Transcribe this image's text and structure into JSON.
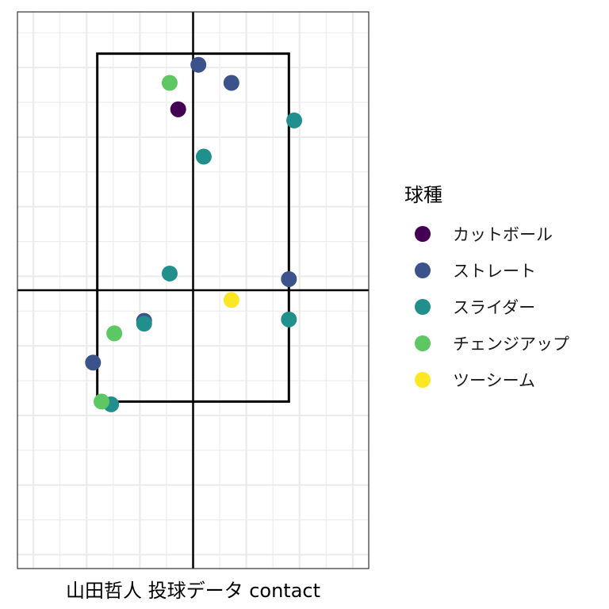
{
  "chart_data": {
    "type": "scatter",
    "title": "",
    "xlabel": "山田哲人 投球データ contact",
    "ylabel": "",
    "xlim": [
      -1.65,
      1.65
    ],
    "ylim": [
      0.4,
      4.4
    ],
    "grid": true,
    "strike_zone": {
      "x": [
        -0.9,
        0.9
      ],
      "y": [
        1.6,
        4.1
      ]
    },
    "center_lines": {
      "x": 0,
      "y": 2.4
    },
    "legend": {
      "title": "球種",
      "position": "right",
      "entries": [
        {
          "name": "カットボール",
          "color": "#440154"
        },
        {
          "name": "ストレート",
          "color": "#3b528b"
        },
        {
          "name": "スライダー",
          "color": "#21908c"
        },
        {
          "name": "チェンジアップ",
          "color": "#5dc863"
        },
        {
          "name": "ツーシーム",
          "color": "#fde725"
        }
      ]
    },
    "series": [
      {
        "name": "カットボール",
        "color": "#440154",
        "points": [
          [
            -0.14,
            3.7
          ]
        ]
      },
      {
        "name": "ストレート",
        "color": "#3b528b",
        "points": [
          [
            0.05,
            4.02
          ],
          [
            0.36,
            3.89
          ],
          [
            0.9,
            2.48
          ],
          [
            -0.46,
            2.18
          ],
          [
            -0.94,
            1.88
          ]
        ]
      },
      {
        "name": "スライダー",
        "color": "#21908c",
        "points": [
          [
            0.95,
            3.62
          ],
          [
            0.1,
            3.36
          ],
          [
            -0.22,
            2.52
          ],
          [
            0.9,
            2.19
          ],
          [
            -0.46,
            2.16
          ],
          [
            -0.77,
            1.58
          ]
        ]
      },
      {
        "name": "チェンジアップ",
        "color": "#5dc863",
        "points": [
          [
            -0.22,
            3.89
          ],
          [
            -0.74,
            2.09
          ],
          [
            -0.86,
            1.6
          ]
        ]
      },
      {
        "name": "ツーシーム",
        "color": "#fde725",
        "points": [
          [
            0.36,
            2.33
          ]
        ]
      }
    ]
  }
}
